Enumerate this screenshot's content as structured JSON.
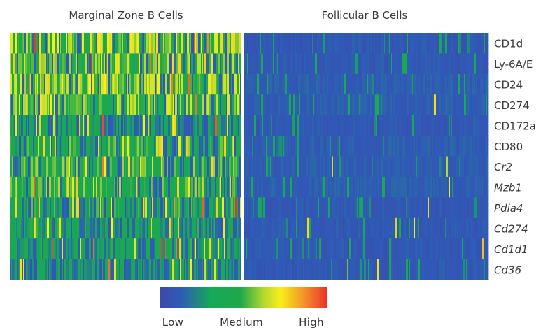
{
  "chart_data": {
    "type": "heatmap",
    "groups": [
      {
        "name": "Marginal Zone B Cells",
        "level": 0.5
      },
      {
        "name": "Follicular B Cells",
        "level": 0.1
      }
    ],
    "rows": [
      {
        "label": "CD1d",
        "italic": false,
        "mz_level": 0.56,
        "fo_level": 0.1
      },
      {
        "label": "Ly-6A/E",
        "italic": false,
        "mz_level": 0.5,
        "fo_level": 0.1
      },
      {
        "label": "CD24",
        "italic": false,
        "mz_level": 0.55,
        "fo_level": 0.12
      },
      {
        "label": "CD274",
        "italic": false,
        "mz_level": 0.48,
        "fo_level": 0.12
      },
      {
        "label": "CD172a",
        "italic": false,
        "mz_level": 0.28,
        "fo_level": 0.1
      },
      {
        "label": "CD80",
        "italic": false,
        "mz_level": 0.42,
        "fo_level": 0.12
      },
      {
        "label": "Cr2",
        "italic": true,
        "mz_level": 0.42,
        "fo_level": 0.12
      },
      {
        "label": "Mzb1",
        "italic": true,
        "mz_level": 0.44,
        "fo_level": 0.12
      },
      {
        "label": "Pdia4",
        "italic": true,
        "mz_level": 0.36,
        "fo_level": 0.1
      },
      {
        "label": "Cd274",
        "italic": true,
        "mz_level": 0.32,
        "fo_level": 0.1
      },
      {
        "label": "Cd1d1",
        "italic": true,
        "mz_level": 0.32,
        "fo_level": 0.1
      },
      {
        "label": "Cd36",
        "italic": true,
        "mz_level": 0.3,
        "fo_level": 0.1
      }
    ],
    "color_scale": {
      "stops": [
        {
          "value": 0.0,
          "color": "#3d4aa8"
        },
        {
          "value": 0.12,
          "color": "#2f5ab8"
        },
        {
          "value": 0.3,
          "color": "#18a85a"
        },
        {
          "value": 0.48,
          "color": "#1fa84a"
        },
        {
          "value": 0.62,
          "color": "#b6d92e"
        },
        {
          "value": 0.72,
          "color": "#f7ee1a"
        },
        {
          "value": 0.86,
          "color": "#f3922a"
        },
        {
          "value": 1.0,
          "color": "#ea2f2a"
        }
      ],
      "labels": [
        "Low",
        "Medium",
        "High"
      ]
    }
  }
}
